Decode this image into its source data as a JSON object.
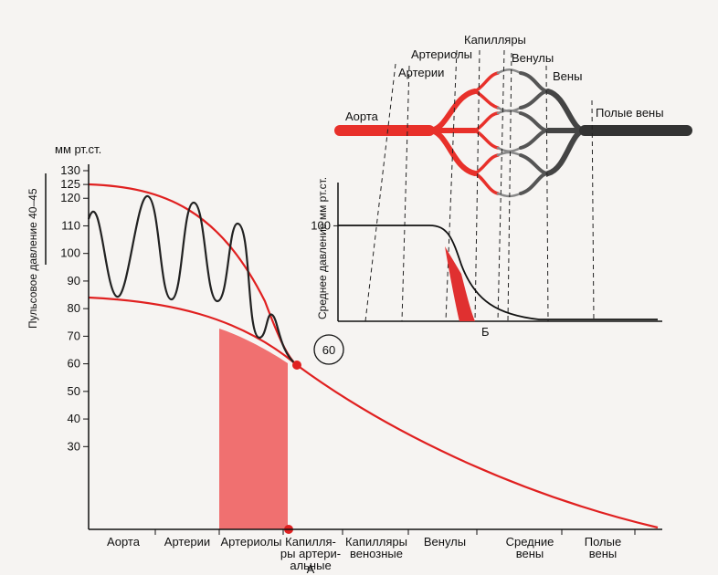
{
  "main": {
    "y_unit": "мм рт.ст.",
    "pulse_label": "Пульсовое давление 40–45",
    "ylim": [
      0,
      130
    ],
    "yticks": [
      30,
      40,
      50,
      60,
      70,
      80,
      90,
      100,
      110,
      120,
      125,
      130
    ],
    "categories": [
      [
        "Аорта"
      ],
      [
        "Артерии"
      ],
      [
        "Артериолы"
      ],
      [
        "Капилля-",
        "ры артери-",
        "альные"
      ],
      [
        "Капилляры",
        "венозные"
      ],
      [
        "Венулы"
      ],
      [
        "Средние",
        "вены"
      ],
      [
        "Полые",
        "вены"
      ]
    ],
    "marker": 60,
    "panel_label": "А"
  },
  "inset": {
    "y_label": "Среднее давление мм рт.ст.",
    "ylim": [
      0,
      130
    ],
    "yticks": [
      100
    ],
    "panel_label": "Б"
  },
  "vessels": {
    "aorta": "Аорта",
    "arteries": "Артерии",
    "arterioles": "Артериолы",
    "capillaries": "Капилляры",
    "venules": "Венулы",
    "veins": "Вены",
    "vena_cava": "Полые вены"
  }
}
